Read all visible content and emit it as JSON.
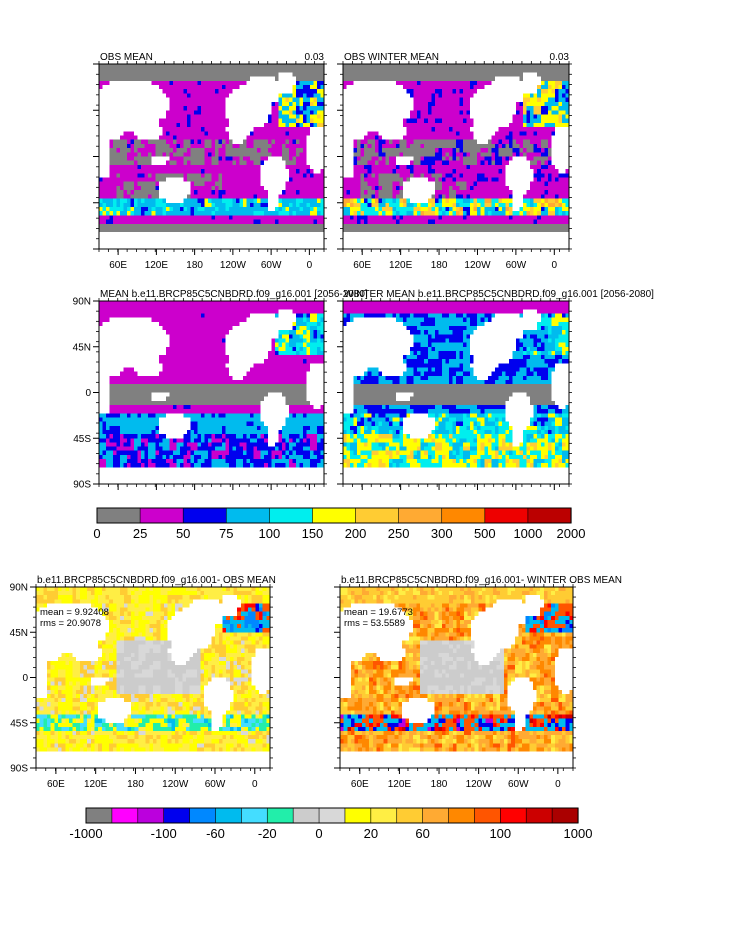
{
  "colors": {
    "land": "#ffffff",
    "frame": "#000000"
  },
  "panels": [
    {
      "id": "obs-mean",
      "title_left": "OBS MEAN",
      "title_right": "0.03",
      "palette": "top",
      "pattern": "obs_annual",
      "show_x_labels": true,
      "show_y_labels": false,
      "stats": null
    },
    {
      "id": "obs-winter-mean",
      "title_left": "OBS WINTER MEAN",
      "title_right": "0.03",
      "palette": "top",
      "pattern": "obs_winter",
      "show_x_labels": true,
      "show_y_labels": false,
      "stats": null
    },
    {
      "id": "model-mean",
      "title_left": "MEAN b.e11.BRCP85C5CNBDRD.f09_g16.001 [2056-2080]",
      "title_right": "",
      "palette": "top",
      "pattern": "model_annual",
      "show_x_labels": false,
      "show_y_labels": true,
      "stats": null
    },
    {
      "id": "model-winter-mean",
      "title_left": "WINTER MEAN b.e11.BRCP85C5CNBDRD.f09_g16.001 [2056-2080]",
      "title_right": "",
      "palette": "top",
      "pattern": "model_winter",
      "show_x_labels": false,
      "show_y_labels": false,
      "stats": null
    },
    {
      "id": "diff-mean",
      "title_left": "b.e11.BRCP85C5CNBDRD.f09_g16.001- OBS MEAN",
      "title_right": "",
      "palette": "diff",
      "pattern": "diff_annual",
      "show_x_labels": true,
      "show_y_labels": true,
      "stats": {
        "mean_label": "mean = 9.92408",
        "rms_label": "rms = 20.9078"
      }
    },
    {
      "id": "diff-winter-mean",
      "title_left": "b.e11.BRCP85C5CNBDRD.f09_g16.001- WINTER OBS MEAN",
      "title_right": "",
      "palette": "diff",
      "pattern": "diff_winter",
      "show_x_labels": true,
      "show_y_labels": false,
      "stats": {
        "mean_label": "mean = 19.6773",
        "rms_label": "rms = 53.5589"
      }
    }
  ],
  "axes": {
    "x_ticks": [
      "60E",
      "120E",
      "180",
      "120W",
      "60W",
      "0"
    ],
    "y_ticks": [
      "90N",
      "45N",
      "0",
      "45S",
      "90S"
    ]
  },
  "colorbars": {
    "top": {
      "colors": [
        "#808080",
        "#cc00cc",
        "#0000ee",
        "#00bbee",
        "#00eeee",
        "#ffff00",
        "#ffcc33",
        "#ffaa33",
        "#ff8800",
        "#ee0000",
        "#bb0000"
      ],
      "labels": [
        "0",
        "25",
        "50",
        "75",
        "100",
        "150",
        "200",
        "250",
        "300",
        "500",
        "1000",
        "2000"
      ]
    },
    "diff": {
      "colors": [
        "#808080",
        "#ff00ff",
        "#bb00dd",
        "#0000ee",
        "#0088ff",
        "#00bbee",
        "#44ddff",
        "#22eeaa",
        "#cccccc",
        "#d8d8d8",
        "#ffff00",
        "#ffee44",
        "#ffcc33",
        "#ffaa33",
        "#ff8800",
        "#ff5500",
        "#ff0000",
        "#cc0000",
        "#aa0000"
      ],
      "labels": [
        "-1000",
        "-100",
        "-60",
        "-20",
        "0",
        "20",
        "60",
        "100",
        "1000"
      ]
    }
  },
  "chart_data": [
    {
      "type": "heatmap",
      "title": "OBS MEAN",
      "title_right": "0.03",
      "projection": "global lat-lon",
      "x_ticks": [
        "60E",
        "120E",
        "180",
        "120W",
        "60W",
        "0"
      ],
      "colorbar": "top"
    },
    {
      "type": "heatmap",
      "title": "OBS WINTER MEAN",
      "title_right": "0.03",
      "projection": "global lat-lon",
      "x_ticks": [
        "60E",
        "120E",
        "180",
        "120W",
        "60W",
        "0"
      ],
      "colorbar": "top"
    },
    {
      "type": "heatmap",
      "title": "MEAN b.e11.BRCP85C5CNBDRD.f09_g16.001 [2056-2080]",
      "y_ticks": [
        "90N",
        "45N",
        "0",
        "45S",
        "90S"
      ],
      "colorbar": "top"
    },
    {
      "type": "heatmap",
      "title": "WINTER MEAN b.e11.BRCP85C5CNBDRD.f09_g16.001 [2056-2080]",
      "colorbar": "top"
    },
    {
      "type": "heatmap",
      "title": "b.e11.BRCP85C5CNBDRD.f09_g16.001- OBS MEAN",
      "x_ticks": [
        "60E",
        "120E",
        "180",
        "120W",
        "60W",
        "0"
      ],
      "y_ticks": [
        "90N",
        "45N",
        "0",
        "45S",
        "90S"
      ],
      "mean": 9.92408,
      "rms": 20.9078,
      "colorbar": "diff"
    },
    {
      "type": "heatmap",
      "title": "b.e11.BRCP85C5CNBDRD.f09_g16.001- WINTER OBS MEAN",
      "x_ticks": [
        "60E",
        "120E",
        "180",
        "120W",
        "60W",
        "0"
      ],
      "mean": 19.6773,
      "rms": 53.5589,
      "colorbar": "diff"
    }
  ]
}
